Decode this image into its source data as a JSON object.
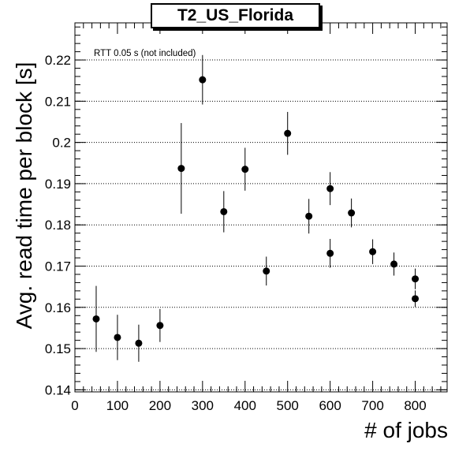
{
  "chart_data": {
    "type": "scatter",
    "title": "T2_US_Florida",
    "xlabel": "# of jobs",
    "ylabel": "Avg. read time per block [s]",
    "annotation": "RTT 0.05 s (not included)",
    "xlim": [
      0,
      875
    ],
    "ylim": [
      0.1395,
      0.229
    ],
    "xticks": [
      0,
      100,
      200,
      300,
      400,
      500,
      600,
      700,
      800
    ],
    "yticks": [
      0.14,
      0.15,
      0.16,
      0.17,
      0.18,
      0.19,
      0.2,
      0.21,
      0.22
    ],
    "ytick_labels": [
      "0.14",
      "0.15",
      "0.16",
      "0.17",
      "0.18",
      "0.19",
      "0.2",
      "0.21",
      "0.22"
    ],
    "grid": "horizontal dotted",
    "marker_color": "#000000",
    "points": [
      {
        "x": 50,
        "y": 0.1572,
        "err": 0.008
      },
      {
        "x": 100,
        "y": 0.1527,
        "err": 0.0055
      },
      {
        "x": 150,
        "y": 0.1513,
        "err": 0.0045
      },
      {
        "x": 200,
        "y": 0.1556,
        "err": 0.004
      },
      {
        "x": 250,
        "y": 0.1937,
        "err": 0.011
      },
      {
        "x": 300,
        "y": 0.2152,
        "err": 0.006
      },
      {
        "x": 350,
        "y": 0.1832,
        "err": 0.005
      },
      {
        "x": 400,
        "y": 0.1935,
        "err": 0.0052
      },
      {
        "x": 450,
        "y": 0.1688,
        "err": 0.0035
      },
      {
        "x": 500,
        "y": 0.2022,
        "err": 0.0052
      },
      {
        "x": 550,
        "y": 0.1821,
        "err": 0.0042
      },
      {
        "x": 600,
        "y": 0.1888,
        "err": 0.004
      },
      {
        "x": 600,
        "y": 0.1731,
        "err": 0.0035
      },
      {
        "x": 650,
        "y": 0.1829,
        "err": 0.0035
      },
      {
        "x": 700,
        "y": 0.1735,
        "err": 0.003
      },
      {
        "x": 750,
        "y": 0.1705,
        "err": 0.0028
      },
      {
        "x": 800,
        "y": 0.1669,
        "err": 0.0025
      },
      {
        "x": 800,
        "y": 0.1621,
        "err": 0.002
      }
    ]
  }
}
